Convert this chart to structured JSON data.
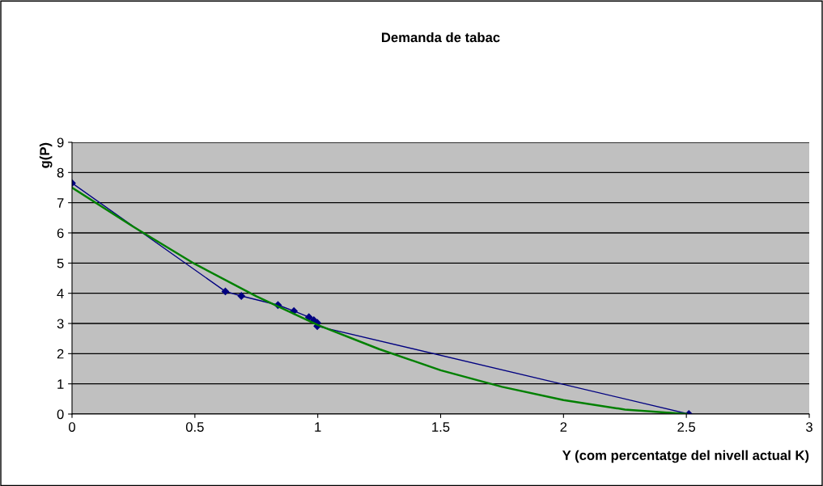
{
  "chart_data": {
    "type": "line",
    "title": "Demanda de tabac",
    "xlabel": "Y (com percentatge del nivell actual K)",
    "ylabel": "g(P)",
    "series": [
      {
        "color": "#000080",
        "marker": "diamond",
        "x": [
          0,
          0.624,
          0.689,
          0.838,
          0.903,
          0.964,
          0.984,
          0.998,
          0.998,
          2.51
        ],
        "values": [
          7.65,
          4.06,
          3.91,
          3.61,
          3.41,
          3.21,
          3.11,
          3.02,
          2.91,
          0
        ]
      },
      {
        "color": "#008000",
        "marker": "none",
        "x": [
          0,
          0.25,
          0.5,
          0.75,
          1,
          1.25,
          1.5,
          1.75,
          2,
          2.25,
          2.5
        ],
        "values": [
          7.5,
          6.2,
          4.97,
          3.9,
          2.95,
          2.15,
          1.45,
          0.9,
          0.46,
          0.15,
          0
        ]
      }
    ],
    "xlim": [
      0,
      3
    ],
    "xticks": [
      0,
      0.5,
      1,
      1.5,
      2,
      2.5,
      3
    ],
    "ylim": [
      0,
      9
    ],
    "yticks": [
      0,
      1,
      2,
      3,
      4,
      5,
      6,
      7,
      8,
      9
    ],
    "grid": "y"
  }
}
